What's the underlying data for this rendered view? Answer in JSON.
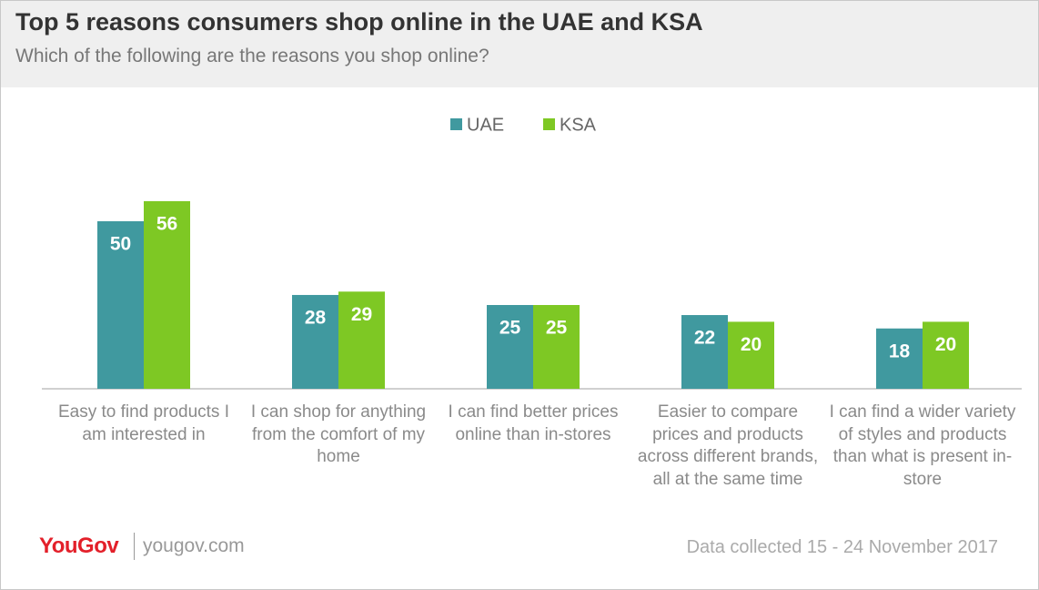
{
  "chart_data": {
    "type": "bar",
    "title": "Top 5 reasons consumers shop online in the UAE and KSA",
    "subtitle": "Which of the following are the reasons you shop online?",
    "categories": [
      "Easy to find products I am interested in",
      "I can shop for anything from the comfort of my home",
      "I can find better prices online than in-stores",
      "Easier to compare prices and products across different brands, all at the same time",
      "I can find a wider variety of styles and products than what is present in-store"
    ],
    "series": [
      {
        "name": "UAE",
        "color": "#40999f",
        "values": [
          50,
          28,
          25,
          22,
          18
        ]
      },
      {
        "name": "KSA",
        "color": "#7ec824",
        "values": [
          56,
          29,
          25,
          20,
          20
        ]
      }
    ],
    "legend": "top",
    "data_labels": true
  },
  "footer": {
    "brand": "YouGov",
    "url": "yougov.com",
    "note": "Data collected 15 - 24 November 2017"
  }
}
